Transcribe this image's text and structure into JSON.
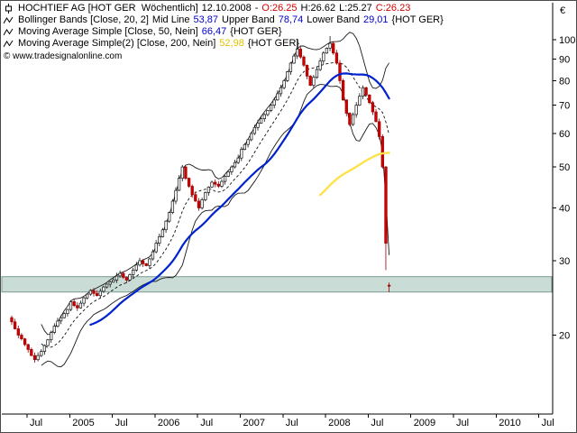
{
  "legend": {
    "line1": {
      "title": "HOCHTIEF AG [HOT GER  Wöchentlich]",
      "date": "12.10.2008",
      "dash": "-",
      "o": "O:26.25",
      "h": "H:26.62",
      "l": "L:25.27",
      "c": "C:26.23"
    },
    "line2": {
      "name": "Bollinger Bands [Close, 20, 2]",
      "mid_label": "Mid Line",
      "mid": "53,87",
      "upper_label": "Upper Band",
      "upper": "78,74",
      "lower_label": "Lower Band",
      "lower": "29,01",
      "suffix": "{HOT GER}"
    },
    "line3": {
      "name": "Moving Average Simple [Close, 50, Nein]",
      "value": "66,47",
      "suffix": "{HOT GER}"
    },
    "line4": {
      "name": "Moving Average Simple(2) [Close, 200, Nein]",
      "value": "52,98",
      "suffix": "{HOT GER}"
    },
    "copyright": "© www.tradesignalonline.com"
  },
  "chart_data": {
    "type": "candlestick",
    "instrument": "HOCHTIEF AG",
    "symbol": "HOT GER",
    "timeframe": "Wöchentlich (weekly)",
    "as_of": "12.10.2008",
    "scale": "log",
    "currency": "€",
    "price_ticks": [
      100,
      90,
      80,
      70,
      60,
      50,
      40,
      30,
      20
    ],
    "ylim": [
      13,
      118
    ],
    "x_tick_labels": [
      "Jul",
      "2005",
      "Jul",
      "2006",
      "Jul",
      "2007",
      "Jul",
      "2008",
      "Jul",
      "2009",
      "Jul",
      "2010",
      "Jul"
    ],
    "x_range_note": "bars span approx Apr 2004 to 12 Oct 2008; axis extends empty to Jul 2010",
    "closes": [
      21.5,
      20.7,
      20.0,
      19.6,
      19.0,
      18.5,
      17.9,
      17.5,
      17.9,
      18.3,
      18.9,
      19.5,
      20.3,
      21.0,
      21.6,
      22.0,
      22.5,
      23.0,
      24.0,
      23.5,
      23.2,
      23.8,
      24.5,
      25.0,
      25.5,
      25.1,
      24.8,
      25.4,
      26.0,
      26.4,
      26.7,
      27.0,
      27.6,
      28.0,
      27.4,
      27.0,
      27.8,
      28.5,
      29.3,
      30.0,
      29.5,
      29.2,
      30.3,
      31.5,
      33.0,
      34.2,
      35.5,
      37.2,
      39.0,
      41.5,
      44.0,
      47.0,
      50.0,
      47.0,
      45.0,
      43.0,
      41.5,
      40.0,
      41.8,
      43.5,
      44.8,
      46.0,
      45.5,
      45.0,
      46.2,
      47.5,
      48.7,
      50.0,
      51.2,
      52.5,
      55.0,
      56.5,
      58.0,
      60.0,
      62.0,
      63.5,
      65.0,
      66.5,
      68.0,
      70.0,
      72.0,
      74.5,
      77.0,
      80.0,
      84.0,
      88.0,
      91.5,
      95.0,
      91.0,
      87.0,
      82.0,
      78.0,
      81.5,
      85.0,
      89.0,
      93.0,
      95.5,
      98.0,
      93.0,
      88.0,
      80.0,
      72.0,
      67.0,
      63.0,
      66.5,
      70.0,
      73.5,
      77.0,
      74.0,
      71.0,
      67.5,
      64.0,
      59.0,
      50.0,
      33.0,
      26.23
    ],
    "overrides": {
      "87": {
        "high": 100.5
      },
      "97": {
        "high": 102.0
      },
      "114": {
        "low": 28.5
      },
      "115": {
        "open": 26.25,
        "high": 26.62,
        "low": 25.27
      }
    },
    "last_bar": {
      "date": "12.10.2008",
      "open": 26.25,
      "high": 26.62,
      "low": 25.27,
      "close": 26.23
    },
    "indicators": {
      "bollinger": {
        "source": "Close",
        "period": 20,
        "deviation": 2,
        "mid": 53.87,
        "upper": 78.74,
        "lower": 29.01,
        "color": "#1a1a1a"
      },
      "sma50": {
        "source": "Close",
        "period": 50,
        "value": 66.47,
        "color": "#0022cc"
      },
      "sma200": {
        "source": "Close",
        "period": 200,
        "value": 52.98,
        "color": "#ffe14a"
      }
    },
    "support_zone": {
      "from": 25.3,
      "to": 27.5,
      "fill": "#c9ddd6",
      "stroke": "#7d9a93"
    },
    "colors": {
      "up_fill": "#ffffff",
      "up_stroke": "#111111",
      "down_fill": "#d40000",
      "down_stroke": "#9a0000",
      "axis": "#000000"
    }
  }
}
